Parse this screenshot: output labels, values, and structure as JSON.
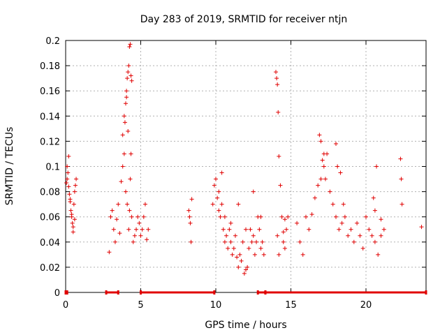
{
  "chart_data": {
    "type": "scatter",
    "title": "Day 283 of 2019, SRMTID for receiver ntjn",
    "xlabel": "GPS time / hours",
    "ylabel": "SRMTID / TECUs",
    "xlim": [
      0,
      24
    ],
    "ylim": [
      0,
      0.2
    ],
    "x_ticks": [
      0,
      5,
      10,
      15,
      20
    ],
    "x_tick_labels": [
      "0",
      "5",
      "10",
      "15",
      "20"
    ],
    "y_ticks": [
      0,
      0.02,
      0.04,
      0.06,
      0.08,
      0.1,
      0.12,
      0.14,
      0.16,
      0.18,
      0.2
    ],
    "y_tick_labels": [
      "0",
      "0.02",
      "0.04",
      "0.06",
      "0.08",
      "0.1",
      "0.12",
      "0.14",
      "0.16",
      "0.18",
      "0.2"
    ],
    "grid": true,
    "marker": "+",
    "colors": {
      "series": "#e00000",
      "grid": "#b0b0b0",
      "axis": "#000000"
    },
    "series": [
      {
        "name": "SRMTID",
        "x": [
          0.05,
          0.1,
          0.15,
          0.2,
          0.25,
          0.3,
          0.35,
          0.4,
          0.45,
          0.5,
          0.55,
          0.6,
          0.65,
          0.7,
          0.1,
          0.2,
          0.3,
          0.4,
          0.5,
          0.6,
          2.9,
          3.0,
          3.1,
          3.2,
          3.3,
          3.4,
          3.5,
          3.6,
          3.7,
          3.8,
          3.9,
          4.0,
          4.1,
          4.2,
          4.25,
          4.3,
          4.35,
          4.4,
          4.5,
          4.6,
          4.7,
          4.8,
          4.9,
          5.0,
          5.1,
          5.2,
          5.3,
          5.4,
          5.5,
          3.8,
          3.9,
          4.0,
          4.05,
          4.1,
          4.15,
          4.2,
          4.25,
          4.3,
          4.35,
          4.4,
          3.95,
          4.05,
          4.15,
          8.2,
          8.25,
          8.3,
          8.35,
          8.4,
          9.8,
          9.9,
          10.0,
          10.1,
          10.2,
          10.3,
          10.4,
          10.5,
          10.6,
          10.7,
          10.8,
          10.9,
          11.0,
          11.1,
          11.2,
          11.3,
          11.4,
          11.5,
          11.6,
          11.7,
          11.8,
          11.9,
          12.0,
          12.1,
          12.2,
          12.3,
          12.4,
          12.5,
          12.6,
          12.7,
          12.8,
          12.9,
          13.0,
          13.1,
          13.2,
          10.2,
          10.4,
          10.6,
          11.0,
          11.5,
          12.0,
          12.5,
          13.0,
          14.0,
          14.05,
          14.1,
          14.15,
          14.2,
          14.3,
          14.4,
          14.5,
          14.6,
          14.7,
          14.8,
          14.1,
          14.2,
          14.5,
          14.6,
          15.4,
          15.6,
          15.8,
          16.0,
          16.2,
          16.4,
          16.6,
          16.8,
          17.0,
          17.2,
          17.4,
          17.6,
          17.8,
          18.0,
          18.2,
          18.4,
          18.6,
          18.8,
          19.0,
          19.2,
          19.4,
          19.6,
          19.8,
          20.0,
          20.2,
          20.4,
          20.6,
          20.8,
          21.0,
          21.2,
          17.0,
          17.1,
          17.2,
          17.3,
          16.9,
          18.0,
          18.1,
          18.3,
          18.5,
          20.5,
          20.6,
          20.7,
          21.0,
          22.3,
          22.35,
          22.4,
          23.7
        ],
        "y": [
          0.087,
          0.09,
          0.095,
          0.084,
          0.078,
          0.072,
          0.065,
          0.06,
          0.055,
          0.052,
          0.07,
          0.08,
          0.085,
          0.09,
          0.1,
          0.108,
          0.074,
          0.062,
          0.048,
          0.058,
          0.032,
          0.06,
          0.065,
          0.05,
          0.04,
          0.058,
          0.07,
          0.047,
          0.088,
          0.1,
          0.11,
          0.08,
          0.07,
          0.05,
          0.065,
          0.09,
          0.11,
          0.06,
          0.04,
          0.045,
          0.05,
          0.06,
          0.055,
          0.045,
          0.05,
          0.06,
          0.07,
          0.042,
          0.05,
          0.125,
          0.14,
          0.15,
          0.16,
          0.17,
          0.175,
          0.18,
          0.195,
          0.197,
          0.172,
          0.168,
          0.135,
          0.155,
          0.128,
          0.065,
          0.06,
          0.055,
          0.04,
          0.074,
          0.07,
          0.085,
          0.09,
          0.075,
          0.065,
          0.06,
          0.07,
          0.05,
          0.04,
          0.045,
          0.035,
          0.05,
          0.04,
          0.03,
          0.035,
          0.045,
          0.028,
          0.02,
          0.03,
          0.025,
          0.04,
          0.015,
          0.018,
          0.02,
          0.035,
          0.05,
          0.04,
          0.045,
          0.03,
          0.04,
          0.06,
          0.05,
          0.035,
          0.04,
          0.03,
          0.08,
          0.095,
          0.06,
          0.055,
          0.07,
          0.05,
          0.08,
          0.06,
          0.175,
          0.17,
          0.165,
          0.143,
          0.108,
          0.085,
          0.06,
          0.04,
          0.035,
          0.05,
          0.06,
          0.045,
          0.03,
          0.048,
          0.058,
          0.055,
          0.04,
          0.03,
          0.06,
          0.05,
          0.062,
          0.075,
          0.085,
          0.09,
          0.1,
          0.11,
          0.08,
          0.07,
          0.06,
          0.05,
          0.055,
          0.06,
          0.045,
          0.05,
          0.04,
          0.055,
          0.045,
          0.035,
          0.06,
          0.05,
          0.045,
          0.04,
          0.03,
          0.045,
          0.05,
          0.12,
          0.105,
          0.11,
          0.09,
          0.125,
          0.118,
          0.1,
          0.095,
          0.07,
          0.075,
          0.065,
          0.1,
          0.058,
          0.106,
          0.09,
          0.07,
          0.052
        ],
        "zero_intervals": [
          [
            0,
            0.1
          ],
          [
            2.7,
            3.5
          ],
          [
            5.0,
            9.9
          ],
          [
            12.8,
            13.3
          ],
          [
            13.3,
            24.0
          ]
        ]
      }
    ]
  }
}
